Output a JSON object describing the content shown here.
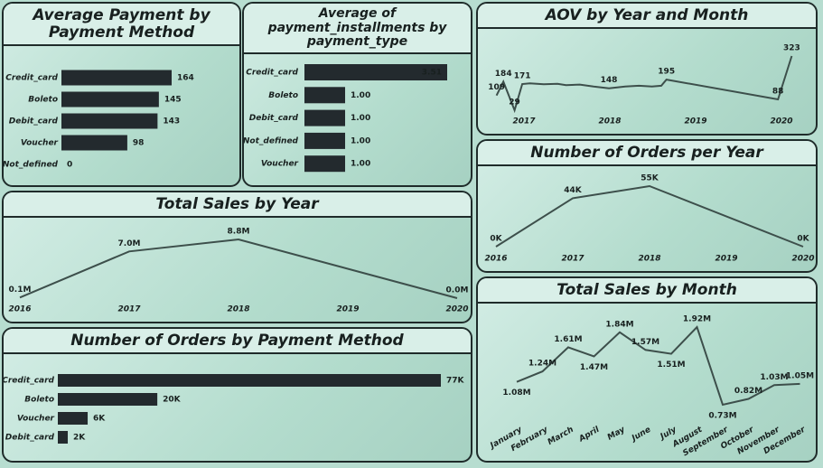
{
  "chart_data": [
    {
      "type": "barh",
      "title": "Average Payment by Payment Method",
      "categories": [
        "Credit_card",
        "Boleto",
        "Debit_card",
        "Voucher",
        "Not_defined"
      ],
      "values": [
        164,
        145,
        143,
        98,
        0
      ],
      "color": "#232a2e"
    },
    {
      "type": "barh",
      "title": "Average of payment_installments by payment_type",
      "categories": [
        "Credit_card",
        "Boleto",
        "Debit_card",
        "Not_defined",
        "Voucher"
      ],
      "values": [
        3.51,
        1,
        1,
        1,
        1
      ],
      "value_labels": [
        "3.51",
        "1.00",
        "1.00",
        "1.00",
        "1.00"
      ],
      "color": "#232a2e"
    },
    {
      "type": "line",
      "title": "AOV by Year and Month",
      "x": [
        2016.68,
        2016.76,
        2016.89,
        2016.98,
        2017.07,
        2017.23,
        2017.39,
        2017.49,
        2017.65,
        2017.81,
        2017.99,
        2018.18,
        2018.34,
        2018.49,
        2018.6,
        2018.66,
        2019.96,
        2020.12
      ],
      "values": [
        109,
        184,
        29,
        171,
        175,
        170,
        172,
        165,
        168,
        158,
        148,
        158,
        162,
        158,
        162,
        195,
        88,
        323
      ],
      "value_labels": [
        "109",
        "184",
        "29",
        "171",
        null,
        null,
        null,
        null,
        null,
        null,
        "148",
        null,
        null,
        null,
        null,
        "195",
        "88",
        "323"
      ],
      "xticks": [
        2017,
        2018,
        2019,
        2020
      ],
      "color": "#3d4f4b"
    },
    {
      "type": "line",
      "title": "Number of Orders per Year",
      "x": [
        2016,
        2017,
        2018,
        2020
      ],
      "values": [
        0,
        44000,
        55000,
        0
      ],
      "value_labels": [
        "0K",
        "44K",
        "55K",
        "0K"
      ],
      "xticks": [
        2016,
        2017,
        2018,
        2019,
        2020
      ],
      "color": "#3d4f4b"
    },
    {
      "type": "line",
      "title": "Total Sales by Year",
      "x": [
        2016,
        2017,
        2018,
        2020
      ],
      "values": [
        0.1,
        7.0,
        8.8,
        0.0
      ],
      "value_labels": [
        "0.1M",
        "7.0M",
        "8.8M",
        "0.0M"
      ],
      "xticks": [
        2016,
        2017,
        2018,
        2019,
        2020
      ],
      "color": "#3d4f4b"
    },
    {
      "type": "barh",
      "title": "Number of Orders by Payment Method",
      "categories": [
        "Credit_card",
        "Boleto",
        "Voucher",
        "Debit_card"
      ],
      "values": [
        77,
        20,
        6,
        2
      ],
      "value_labels": [
        "77K",
        "20K",
        "6K",
        "2K"
      ],
      "color": "#232a2e"
    },
    {
      "type": "line",
      "title": "Total Sales by Month",
      "categories": [
        "January",
        "February",
        "March",
        "April",
        "May",
        "June",
        "July",
        "August",
        "September",
        "October",
        "November",
        "December"
      ],
      "values": [
        1.08,
        1.24,
        1.61,
        1.47,
        1.84,
        1.57,
        1.51,
        1.92,
        0.73,
        0.82,
        1.03,
        1.05
      ],
      "value_labels": [
        "1.08M",
        "1.24M",
        "1.61M",
        "1.47M",
        "1.84M",
        "1.57M",
        "1.51M",
        "1.92M",
        "0.73M",
        "0.82M",
        "1.03M",
        "1.05M"
      ],
      "color": "#3d4f4b"
    }
  ]
}
